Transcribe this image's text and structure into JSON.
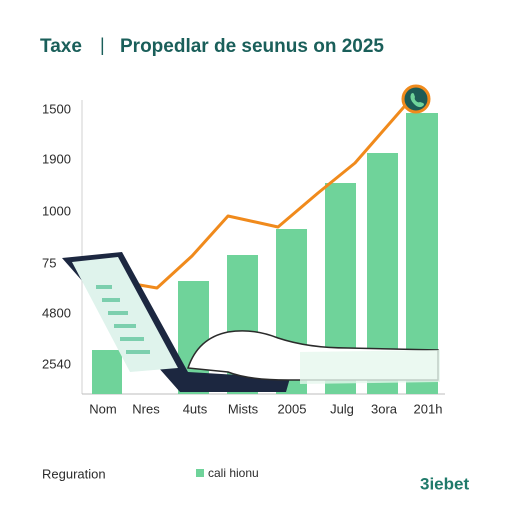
{
  "header": {
    "left": "Taxe",
    "separator": "|",
    "title": "Propedlar de seunus on 2025"
  },
  "y_labels": [
    "1500",
    "1900",
    "1000",
    "75",
    "4800",
    "2540"
  ],
  "x_labels": [
    "Nom",
    "Nres",
    "4uts",
    "Mists",
    "2005",
    "Julg",
    "3ora",
    "201h"
  ],
  "footer": {
    "left": "Reguration",
    "legend": "cali hionu",
    "brand": "3iebet"
  }
}
